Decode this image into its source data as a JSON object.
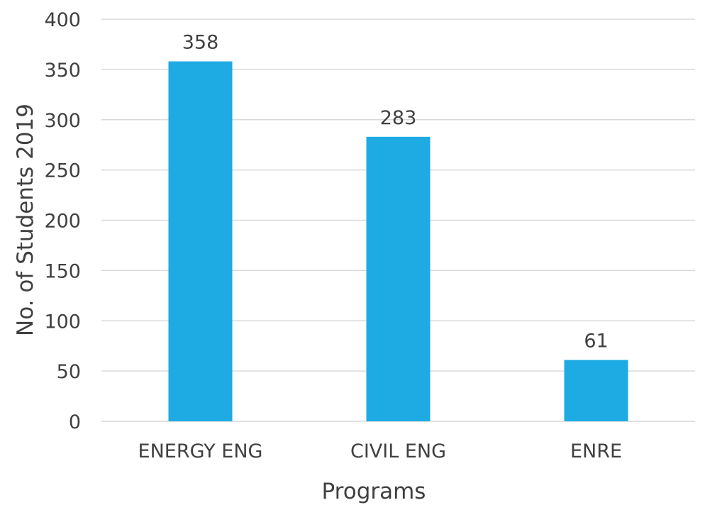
{
  "chart_data": {
    "type": "bar",
    "title": "",
    "xlabel": "Programs",
    "ylabel": "No. of Students 2019",
    "categories": [
      "ENERGY ENG",
      "CIVIL ENG",
      "ENRE"
    ],
    "values": [
      358,
      283,
      61
    ],
    "data_labels": [
      "358",
      "283",
      "61"
    ],
    "ylim": [
      0,
      400
    ],
    "yticks": [
      0,
      50,
      100,
      150,
      200,
      250,
      300,
      350,
      400
    ],
    "ytick_labels": [
      "0",
      "50",
      "100",
      "150",
      "200",
      "250",
      "300",
      "350",
      "400"
    ],
    "grid": true,
    "legend": "none",
    "bar_color": "#1EAAE2",
    "grid_color": "#D9D9D9",
    "text_color": "#404040"
  }
}
